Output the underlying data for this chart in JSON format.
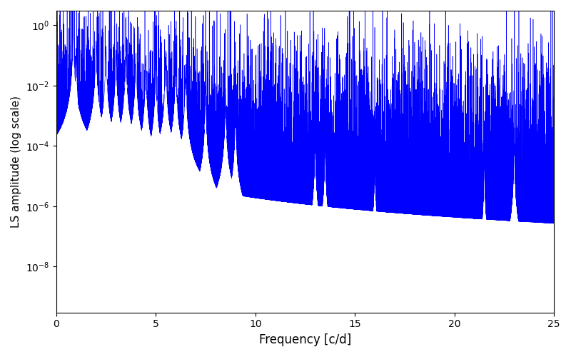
{
  "title": "",
  "xlabel": "Frequency [c/d]",
  "ylabel": "LS amplitude (log scale)",
  "xlim": [
    0,
    25
  ],
  "ylim_log": [
    3e-10,
    3
  ],
  "line_color": "#0000ff",
  "line_width": 0.4,
  "figsize": [
    8.0,
    5.0
  ],
  "dpi": 100,
  "seed": 12345,
  "n_points": 12000,
  "freq_max": 25.0,
  "background_color": "#ffffff",
  "yticks": [
    1e-08,
    1e-06,
    0.0001,
    0.01,
    1.0
  ]
}
